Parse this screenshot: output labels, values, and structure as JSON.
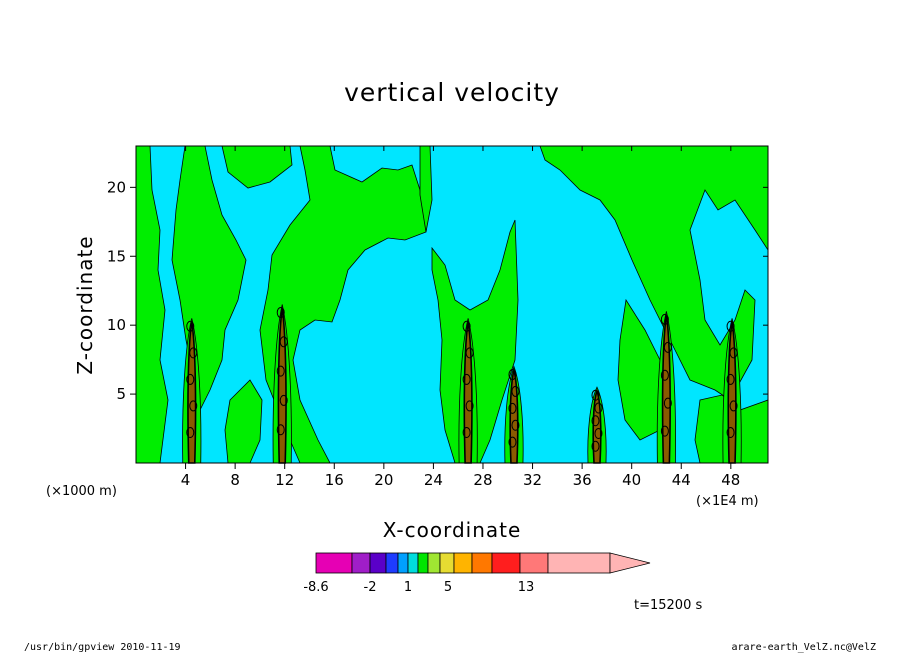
{
  "chart_data": {
    "type": "heatmap",
    "title": "vertical velocity",
    "xlabel": "X-coordinate",
    "ylabel": "Z-coordinate",
    "x_ticks": [
      4,
      8,
      12,
      16,
      20,
      24,
      28,
      32,
      36,
      40,
      44,
      48
    ],
    "y_ticks": [
      5,
      10,
      15,
      20
    ],
    "x_unit_left": "(×1000 m)",
    "x_unit_right": "(×1E4 m)",
    "xlim": [
      0,
      51
    ],
    "ylim": [
      0,
      23
    ],
    "grid": false,
    "legend_placement": "bottom",
    "colorbar": {
      "colors": [
        "#e600b4",
        "#a01ec8",
        "#5a00c8",
        "#1e3cff",
        "#00a0ff",
        "#00dcdc",
        "#00e600",
        "#a0e632",
        "#e6dc32",
        "#ffb400",
        "#ff7800",
        "#ff1e1e",
        "#ff7878",
        "#ffb4b4"
      ],
      "labels": [
        "-8.6",
        "-2",
        "1",
        "5",
        "13"
      ]
    },
    "updraft_columns_x": [
      4.5,
      11.8,
      26.8,
      30.5,
      37.2,
      42.8,
      48.1
    ],
    "updraft_tops_z": [
      10.5,
      11.5,
      10.5,
      7,
      5.5,
      11,
      10.5
    ],
    "field_fill_colors": {
      "background": "#00e6ff",
      "positive": "#00ee00",
      "contour": "#000000"
    }
  },
  "time_label": "t=15200 s",
  "footer": {
    "left": "/usr/bin/gpview  2010-11-19",
    "right": "arare-earth_VelZ.nc@VelZ"
  }
}
